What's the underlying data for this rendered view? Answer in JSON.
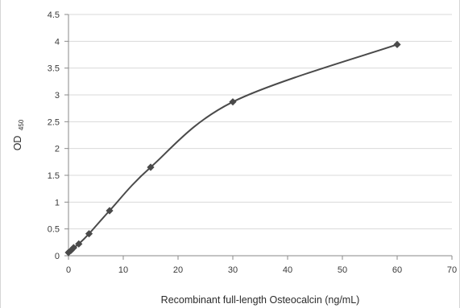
{
  "chart_data": {
    "type": "line",
    "title": "",
    "xlabel": "Recombinant full-length Osteocalcin (ng/mL)",
    "ylabel": {
      "main": "OD",
      "subscript": "450"
    },
    "xlim": [
      0,
      70
    ],
    "ylim": [
      0,
      4.5
    ],
    "x_ticks": [
      "0",
      "10",
      "20",
      "30",
      "40",
      "50",
      "60",
      "70"
    ],
    "y_ticks": [
      "0",
      "0.5",
      "1",
      "1.5",
      "2",
      "2.5",
      "3",
      "3.5",
      "4",
      "4.5"
    ],
    "grid": true,
    "legend": "none",
    "series": [
      {
        "marker": "diamond",
        "color": "#4a4a4a",
        "x": [
          0,
          0.47,
          0.94,
          1.88,
          3.75,
          7.5,
          15,
          30,
          60
        ],
        "y": [
          0.06,
          0.1,
          0.15,
          0.22,
          0.41,
          0.84,
          1.65,
          2.87,
          3.94
        ]
      }
    ]
  }
}
